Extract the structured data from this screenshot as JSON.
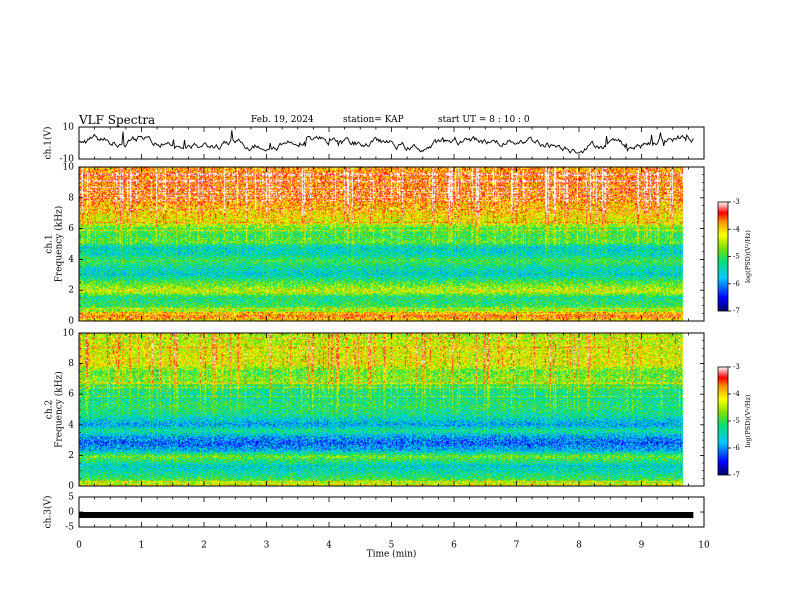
{
  "header": {
    "title": "VLF Spectra",
    "date": "Feb. 19, 2024",
    "station": "station= KAP",
    "start": "start  UT =   8  : 10 : 0"
  },
  "chart_data": [
    {
      "type": "line",
      "name": "ch1-waveform",
      "ylabel": "ch.1(V)",
      "ylim": [
        -10,
        10
      ],
      "y_ticks": [
        "10",
        "-10"
      ],
      "xlim": [
        0,
        10
      ],
      "x_end": 9.83
    },
    {
      "type": "heatmap",
      "name": "ch1-spectrogram",
      "ylabel_lines": [
        "ch.1",
        "Frequency (kHz)"
      ],
      "ylim": [
        0,
        10
      ],
      "y_ticks": [
        "0",
        "2",
        "4",
        "6",
        "8",
        "10"
      ],
      "xlim": [
        0,
        10
      ],
      "x_end": 9.83,
      "colorbar": {
        "label": "log(PSD)(V²/Hz)",
        "range": [
          -7,
          -3
        ],
        "ticks": [
          "-3",
          "-4",
          "-5",
          "-6",
          "-7"
        ]
      },
      "profile": [
        {
          "f": 0.0,
          "v": -4.2
        },
        {
          "f": 0.3,
          "v": -3.6
        },
        {
          "f": 0.6,
          "v": -4.6
        },
        {
          "f": 1.0,
          "v": -5.1
        },
        {
          "f": 1.5,
          "v": -5.3
        },
        {
          "f": 1.9,
          "v": -4.4
        },
        {
          "f": 2.2,
          "v": -4.7
        },
        {
          "f": 2.6,
          "v": -5.1
        },
        {
          "f": 3.0,
          "v": -5.6
        },
        {
          "f": 3.5,
          "v": -5.4
        },
        {
          "f": 3.9,
          "v": -5.0
        },
        {
          "f": 4.3,
          "v": -5.5
        },
        {
          "f": 4.8,
          "v": -5.6
        },
        {
          "f": 5.1,
          "v": -4.9
        },
        {
          "f": 5.5,
          "v": -5.1
        },
        {
          "f": 6.0,
          "v": -5.0
        },
        {
          "f": 6.4,
          "v": -4.4
        },
        {
          "f": 7.0,
          "v": -4.2
        },
        {
          "f": 8.0,
          "v": -3.9
        },
        {
          "f": 9.0,
          "v": -3.8
        },
        {
          "f": 10.0,
          "v": -4.0
        }
      ]
    },
    {
      "type": "heatmap",
      "name": "ch2-spectrogram",
      "ylabel_lines": [
        "ch.2",
        "Frequency (kHz)"
      ],
      "ylim": [
        0,
        10
      ],
      "y_ticks": [
        "0",
        "2",
        "4",
        "6",
        "8",
        "10"
      ],
      "xlim": [
        0,
        10
      ],
      "x_end": 9.83,
      "colorbar": {
        "label": "log(PSD)(V²/Hz)",
        "range": [
          -7,
          -3
        ],
        "ticks": [
          "-3",
          "-4",
          "-5",
          "-6",
          "-7"
        ]
      },
      "profile": [
        {
          "f": 0.0,
          "v": -4.2
        },
        {
          "f": 0.4,
          "v": -5.0
        },
        {
          "f": 0.8,
          "v": -5.4
        },
        {
          "f": 1.3,
          "v": -5.6
        },
        {
          "f": 1.9,
          "v": -4.8
        },
        {
          "f": 2.3,
          "v": -5.8
        },
        {
          "f": 2.8,
          "v": -6.2
        },
        {
          "f": 3.2,
          "v": -5.9
        },
        {
          "f": 3.6,
          "v": -5.3
        },
        {
          "f": 4.0,
          "v": -5.9
        },
        {
          "f": 4.6,
          "v": -5.4
        },
        {
          "f": 5.2,
          "v": -5.2
        },
        {
          "f": 5.8,
          "v": -5.4
        },
        {
          "f": 6.5,
          "v": -5.2
        },
        {
          "f": 7.0,
          "v": -4.8
        },
        {
          "f": 7.5,
          "v": -5.0
        },
        {
          "f": 8.0,
          "v": -4.4
        },
        {
          "f": 9.0,
          "v": -4.5
        },
        {
          "f": 10.0,
          "v": -4.7
        }
      ]
    },
    {
      "type": "line",
      "name": "ch3-waveform",
      "ylabel": "ch.3(V)",
      "ylim": [
        -5,
        5
      ],
      "y_ticks": [
        "5",
        "0",
        "-5"
      ],
      "xlim": [
        0,
        10
      ],
      "x_end": 9.83,
      "level": 0
    }
  ],
  "x_axis": {
    "label": "Time (min)",
    "ticks": [
      "0",
      "1",
      "2",
      "3",
      "4",
      "5",
      "6",
      "7",
      "8",
      "9",
      "10"
    ]
  }
}
